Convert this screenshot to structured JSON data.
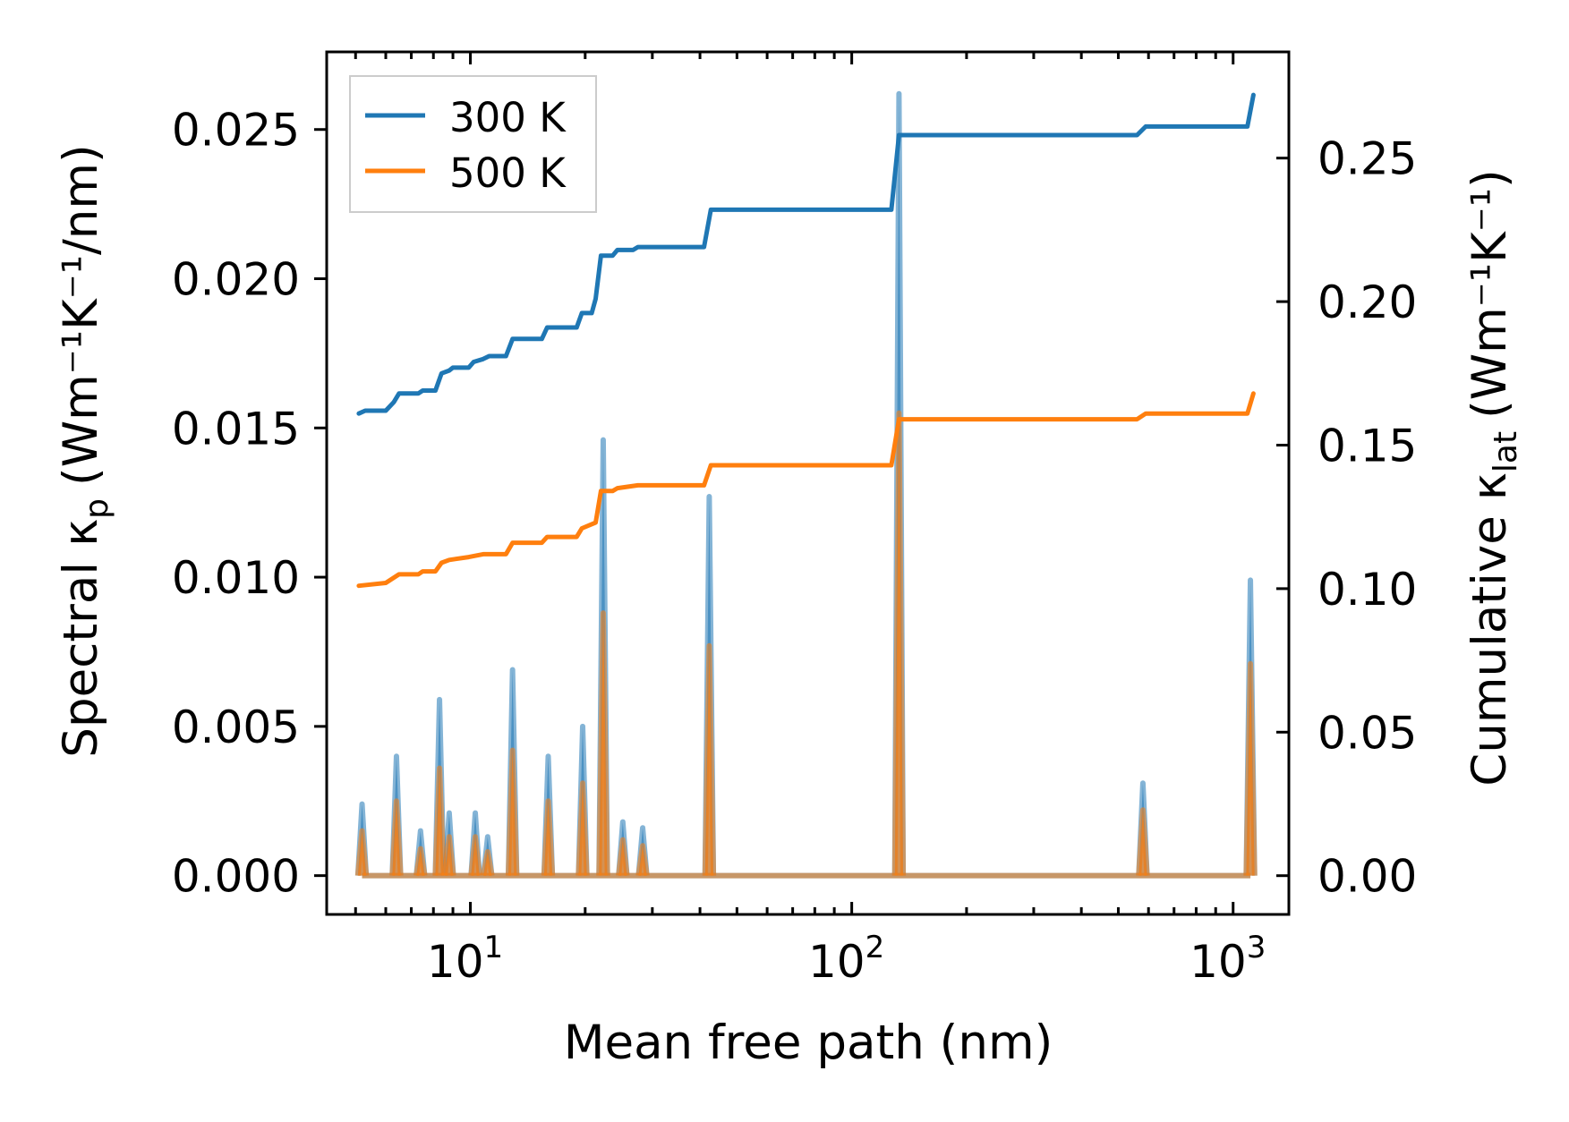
{
  "chart_data": {
    "type": "line",
    "xlabel": "Mean free path (nm)",
    "ylabel_left": {
      "base": "Spectral κ",
      "sub": "p",
      "units": "(Wm⁻¹K⁻¹/nm)"
    },
    "ylabel_right": {
      "base": "Cumulative κ",
      "sub": "lat",
      "units": "(Wm⁻¹K⁻¹)"
    },
    "x_scale": "log",
    "xlim": [
      4.2,
      1400
    ],
    "ylim_left": [
      -0.0013,
      0.0276
    ],
    "ylim_right": [
      -0.0135,
      0.287
    ],
    "x_tick_labels": [
      {
        "value": 10,
        "base": "10",
        "exp": "1"
      },
      {
        "value": 100,
        "base": "10",
        "exp": "2"
      },
      {
        "value": 1000,
        "base": "10",
        "exp": "3"
      }
    ],
    "y_left_ticks": [
      {
        "value": 0.0,
        "label": "0.000"
      },
      {
        "value": 0.005,
        "label": "0.005"
      },
      {
        "value": 0.01,
        "label": "0.010"
      },
      {
        "value": 0.015,
        "label": "0.015"
      },
      {
        "value": 0.02,
        "label": "0.020"
      },
      {
        "value": 0.025,
        "label": "0.025"
      }
    ],
    "y_right_ticks": [
      {
        "value": 0.0,
        "label": "0.00"
      },
      {
        "value": 0.05,
        "label": "0.05"
      },
      {
        "value": 0.1,
        "label": "0.10"
      },
      {
        "value": 0.15,
        "label": "0.15"
      },
      {
        "value": 0.2,
        "label": "0.20"
      },
      {
        "value": 0.25,
        "label": "0.25"
      }
    ],
    "legend": {
      "placement": "top-left",
      "entries": [
        {
          "label": "300 K",
          "color": "#1f77b4"
        },
        {
          "label": "500 K",
          "color": "#ff7f0e"
        }
      ]
    },
    "series": [
      {
        "name": "300 K",
        "color": "#1f77b4",
        "spectral_peaks": [
          {
            "x": 5.2,
            "y": 0.0024
          },
          {
            "x": 6.4,
            "y": 0.004
          },
          {
            "x": 7.4,
            "y": 0.0015
          },
          {
            "x": 8.3,
            "y": 0.0059
          },
          {
            "x": 8.8,
            "y": 0.0021
          },
          {
            "x": 10.3,
            "y": 0.0021
          },
          {
            "x": 11.1,
            "y": 0.0013
          },
          {
            "x": 12.9,
            "y": 0.0069
          },
          {
            "x": 16.0,
            "y": 0.004
          },
          {
            "x": 19.7,
            "y": 0.005
          },
          {
            "x": 22.3,
            "y": 0.0146
          },
          {
            "x": 25.1,
            "y": 0.0018
          },
          {
            "x": 28.3,
            "y": 0.0016
          },
          {
            "x": 42.3,
            "y": 0.0127
          },
          {
            "x": 133,
            "y": 0.0262
          },
          {
            "x": 580,
            "y": 0.0031
          },
          {
            "x": 1110,
            "y": 0.0099
          }
        ],
        "cumulative": [
          [
            5.1,
            0.161
          ],
          [
            5.3,
            0.162
          ],
          [
            6.0,
            0.162
          ],
          [
            6.3,
            0.165
          ],
          [
            6.5,
            0.168
          ],
          [
            7.3,
            0.168
          ],
          [
            7.5,
            0.169
          ],
          [
            8.1,
            0.169
          ],
          [
            8.4,
            0.175
          ],
          [
            8.8,
            0.176
          ],
          [
            9.0,
            0.177
          ],
          [
            9.9,
            0.177
          ],
          [
            10.2,
            0.179
          ],
          [
            10.8,
            0.18
          ],
          [
            11.2,
            0.181
          ],
          [
            12.4,
            0.181
          ],
          [
            12.9,
            0.187
          ],
          [
            15.4,
            0.187
          ],
          [
            15.9,
            0.191
          ],
          [
            19.0,
            0.191
          ],
          [
            19.6,
            0.196
          ],
          [
            20.8,
            0.196
          ],
          [
            21.3,
            0.201
          ],
          [
            22.0,
            0.216
          ],
          [
            23.6,
            0.216
          ],
          [
            24.3,
            0.218
          ],
          [
            26.7,
            0.218
          ],
          [
            27.5,
            0.219
          ],
          [
            41.0,
            0.219
          ],
          [
            42.7,
            0.232
          ],
          [
            127,
            0.232
          ],
          [
            133,
            0.258
          ],
          [
            560,
            0.258
          ],
          [
            590,
            0.261
          ],
          [
            1090,
            0.261
          ],
          [
            1130,
            0.272
          ]
        ]
      },
      {
        "name": "500 K",
        "color": "#ff7f0e",
        "spectral_peaks": [
          {
            "x": 5.2,
            "y": 0.0015
          },
          {
            "x": 6.4,
            "y": 0.0025
          },
          {
            "x": 7.4,
            "y": 0.0009
          },
          {
            "x": 8.3,
            "y": 0.0036
          },
          {
            "x": 8.8,
            "y": 0.0013
          },
          {
            "x": 10.3,
            "y": 0.0013
          },
          {
            "x": 11.1,
            "y": 0.0008
          },
          {
            "x": 12.9,
            "y": 0.0042
          },
          {
            "x": 16.0,
            "y": 0.0025
          },
          {
            "x": 19.7,
            "y": 0.0031
          },
          {
            "x": 22.3,
            "y": 0.0088
          },
          {
            "x": 25.1,
            "y": 0.0012
          },
          {
            "x": 28.3,
            "y": 0.001
          },
          {
            "x": 42.3,
            "y": 0.0077
          },
          {
            "x": 133,
            "y": 0.0155
          },
          {
            "x": 580,
            "y": 0.0022
          },
          {
            "x": 1110,
            "y": 0.0071
          }
        ],
        "cumulative": [
          [
            5.1,
            0.101
          ],
          [
            6.0,
            0.102
          ],
          [
            6.5,
            0.105
          ],
          [
            7.3,
            0.105
          ],
          [
            7.5,
            0.106
          ],
          [
            8.1,
            0.106
          ],
          [
            8.4,
            0.109
          ],
          [
            8.8,
            0.11
          ],
          [
            9.9,
            0.111
          ],
          [
            10.8,
            0.112
          ],
          [
            12.4,
            0.112
          ],
          [
            12.9,
            0.116
          ],
          [
            15.4,
            0.116
          ],
          [
            15.9,
            0.118
          ],
          [
            19.0,
            0.118
          ],
          [
            19.6,
            0.121
          ],
          [
            21.3,
            0.123
          ],
          [
            22.0,
            0.134
          ],
          [
            23.6,
            0.134
          ],
          [
            24.3,
            0.135
          ],
          [
            27.5,
            0.136
          ],
          [
            41.0,
            0.136
          ],
          [
            42.7,
            0.143
          ],
          [
            127,
            0.143
          ],
          [
            133,
            0.159
          ],
          [
            560,
            0.159
          ],
          [
            590,
            0.161
          ],
          [
            1090,
            0.161
          ],
          [
            1130,
            0.168
          ]
        ]
      }
    ]
  }
}
